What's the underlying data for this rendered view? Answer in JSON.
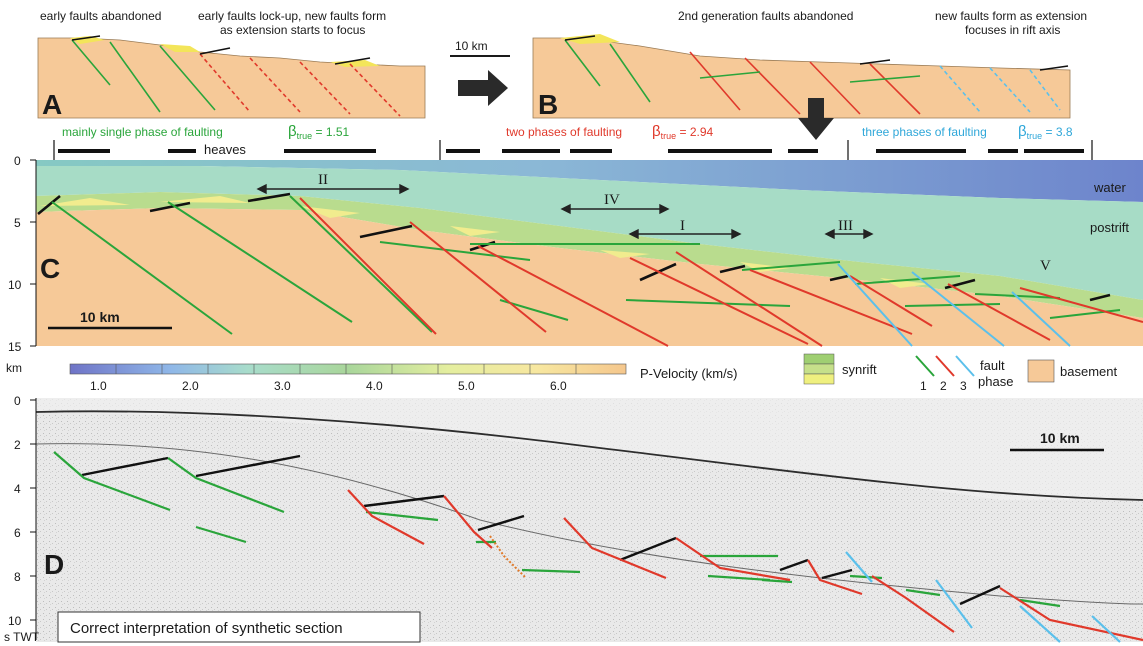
{
  "panel_a": {
    "letter": "A",
    "label_left": "early faults abandoned",
    "label_right_line1": "early faults lock-up, new faults form",
    "label_right_line2": "as extension starts to focus"
  },
  "scale_top": "10 km",
  "panel_b": {
    "letter": "B",
    "label_left": "2nd generation faults abandoned",
    "label_right_line1": "new faults form as extension",
    "label_right_line2": "focuses in rift axis"
  },
  "phases": {
    "single": {
      "text": "mainly single phase of faulting",
      "beta_symbol": "β",
      "beta_sub": "true",
      "beta_value": " = 1.51",
      "color": "#2aa53b"
    },
    "two": {
      "text": "two phases of faulting",
      "beta_symbol": "β",
      "beta_sub": "true",
      "beta_value": " = 2.94",
      "color": "#e0392b"
    },
    "three": {
      "text": "three phases of faulting",
      "beta_symbol": "β",
      "beta_sub": "true",
      "beta_value": " = 3.8",
      "color": "#2fa7d9"
    }
  },
  "heaves_label": "heaves",
  "panel_c": {
    "letter": "C",
    "depth_ticks": [
      "0",
      "5",
      "10",
      "15"
    ],
    "depth_unit": "km",
    "water_label": "water",
    "postrift_label": "postrift",
    "roman_labels": [
      "II",
      "IV",
      "I",
      "III",
      "V"
    ],
    "scale_label": "10 km"
  },
  "legend": {
    "velocity_ticks": [
      "1.0",
      "2.0",
      "3.0",
      "4.0",
      "5.0",
      "6.0"
    ],
    "velocity_title": "P-Velocity (km/s)",
    "synrift_label": "synrift",
    "fault_label_line1": "fault",
    "fault_label_line2": "phase",
    "fault_numbers": [
      "1",
      "2",
      "3"
    ],
    "basement_label": "basement",
    "colors": {
      "phase1": "#2aa53b",
      "phase2": "#e0392b",
      "phase3": "#5bc0eb",
      "basement": "#f6c998"
    }
  },
  "panel_d": {
    "letter": "D",
    "twt_ticks": [
      "0",
      "2",
      "4",
      "6",
      "8",
      "10"
    ],
    "twt_unit": "s TWT",
    "scale_label": "10 km",
    "caption": "Correct interpretation of synthetic section"
  }
}
